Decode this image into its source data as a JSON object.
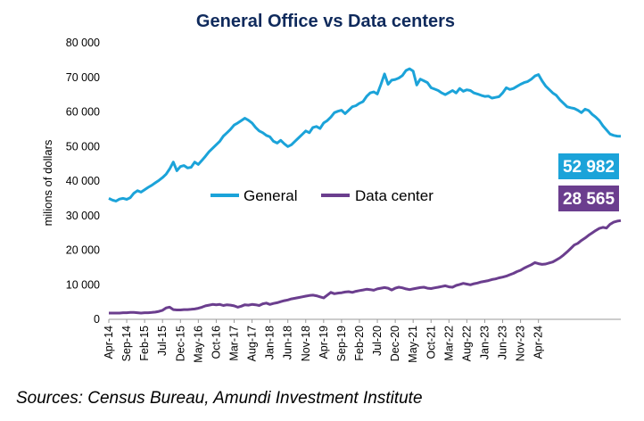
{
  "colors": {
    "general": "#1BA3D9",
    "data_center": "#6B3E8E",
    "title": "#0F2A5C"
  },
  "chart_data": {
    "type": "line",
    "title": "General Office vs Data centers",
    "xlabel": "",
    "ylabel": "milions of dollars",
    "ylim": [
      0,
      80000
    ],
    "yticks": [
      0,
      10000,
      20000,
      30000,
      40000,
      50000,
      60000,
      70000,
      80000
    ],
    "ytick_labels": [
      "0",
      "10 000",
      "20 000",
      "30 000",
      "40 000",
      "50 000",
      "60 000",
      "70 000",
      "80 000"
    ],
    "x_start": "Apr-14",
    "x_tick_labels": [
      "Apr-14",
      "Sep-14",
      "Feb-15",
      "Jul-15",
      "Dec-15",
      "May-16",
      "Oct-16",
      "Mar-17",
      "Aug-17",
      "Jan-18",
      "Jun-18",
      "Nov-18",
      "Apr-19",
      "Sep-19",
      "Feb-20",
      "Jul-20",
      "Dec-20",
      "May-21",
      "Oct-21",
      "Mar-22",
      "Aug-22",
      "Jan-23",
      "Jun-23",
      "Nov-23",
      "Apr-24"
    ],
    "legend_position": "center",
    "series": [
      {
        "name": "General",
        "end_label": "52 982",
        "values": [
          35000,
          34500,
          34200,
          34800,
          35000,
          34700,
          35200,
          36500,
          37200,
          36800,
          37500,
          38200,
          38800,
          39500,
          40200,
          41000,
          42000,
          43500,
          45500,
          43000,
          44200,
          44500,
          43800,
          44000,
          45500,
          44800,
          46000,
          47200,
          48500,
          49500,
          50500,
          51500,
          53000,
          54000,
          55000,
          56200,
          56800,
          57500,
          58200,
          57600,
          56800,
          55500,
          54500,
          54000,
          53200,
          52800,
          51500,
          51000,
          51800,
          50800,
          50000,
          50500,
          51500,
          52500,
          53500,
          54500,
          54000,
          55500,
          55800,
          55200,
          56800,
          57500,
          58500,
          59800,
          60200,
          60500,
          59500,
          60500,
          61500,
          61800,
          62500,
          63000,
          64500,
          65500,
          65800,
          65200,
          68000,
          71000,
          68000,
          69200,
          69400,
          69800,
          70500,
          72000,
          72500,
          71800,
          67800,
          69500,
          69000,
          68500,
          67000,
          66600,
          66200,
          65500,
          65000,
          65600,
          66200,
          65500,
          66800,
          66000,
          66400,
          66200,
          65500,
          65200,
          64800,
          64500,
          64600,
          64000,
          64200,
          64400,
          65500,
          67000,
          66500,
          66800,
          67400,
          68000,
          68500,
          68800,
          69500,
          70400,
          70800,
          69000,
          67500,
          66500,
          65500,
          64800,
          63500,
          62500,
          61500,
          61200,
          61000,
          60500,
          59800,
          60800,
          60400,
          59300,
          58500,
          57500,
          56000,
          54800,
          53600,
          53200,
          53000,
          52982
        ]
      },
      {
        "name": "Data center",
        "end_label": "28 565",
        "values": [
          1800,
          1800,
          1800,
          1800,
          1900,
          1900,
          2000,
          2000,
          1900,
          1800,
          1900,
          1900,
          2000,
          2100,
          2300,
          2600,
          3300,
          3500,
          2800,
          2700,
          2700,
          2800,
          2800,
          2900,
          3000,
          3200,
          3500,
          3900,
          4100,
          4300,
          4200,
          4300,
          4000,
          4200,
          4100,
          3900,
          3500,
          3800,
          4200,
          4100,
          4300,
          4200,
          4000,
          4500,
          4700,
          4300,
          4600,
          4800,
          5100,
          5400,
          5600,
          5900,
          6100,
          6300,
          6500,
          6700,
          6900,
          7000,
          6800,
          6500,
          6200,
          7000,
          7800,
          7400,
          7600,
          7700,
          7900,
          8000,
          7800,
          8100,
          8300,
          8500,
          8700,
          8600,
          8400,
          8800,
          9000,
          9200,
          9000,
          8500,
          9000,
          9300,
          9100,
          8800,
          8600,
          8800,
          9000,
          9200,
          9300,
          9000,
          8900,
          9100,
          9300,
          9500,
          9700,
          9400,
          9300,
          9800,
          10100,
          10400,
          10200,
          10000,
          10300,
          10500,
          10800,
          11000,
          11200,
          11500,
          11700,
          12000,
          12200,
          12500,
          12900,
          13300,
          13800,
          14200,
          14800,
          15300,
          15800,
          16400,
          16100,
          15900,
          16000,
          16300,
          16600,
          17200,
          17800,
          18600,
          19500,
          20500,
          21500,
          22000,
          22800,
          23500,
          24300,
          25000,
          25700,
          26300,
          26600,
          26400,
          27500,
          28100,
          28400,
          28565
        ]
      }
    ]
  },
  "source": "Sources: Census Bureau, Amundi Investment Institute"
}
